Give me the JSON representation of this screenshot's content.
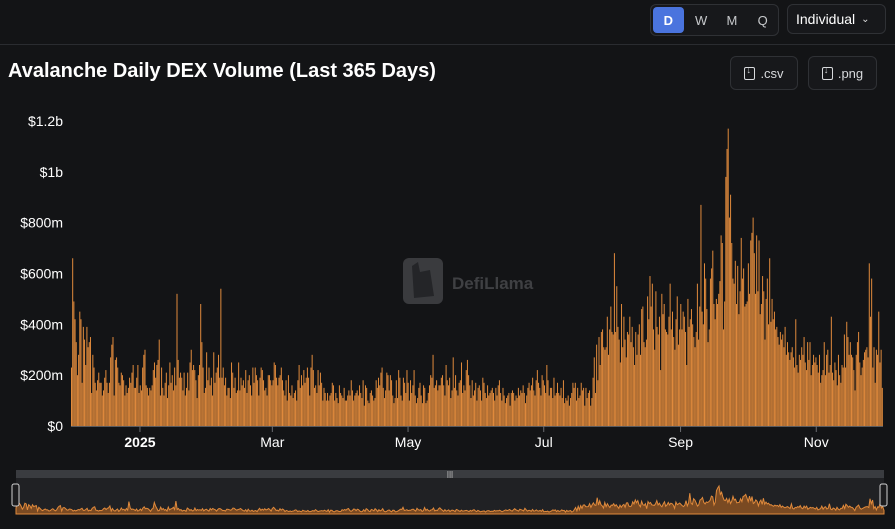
{
  "controls": {
    "periods": [
      "D",
      "W",
      "M",
      "Q"
    ],
    "active_period": "D",
    "mode": "Individual"
  },
  "downloads": {
    "csv": ".csv",
    "png": ".png"
  },
  "watermark": "DefiLlama",
  "chart_data": {
    "type": "bar",
    "title": "Avalanche Daily DEX Volume (Last 365 Days)",
    "xlabel": "",
    "ylabel": "",
    "ylim": [
      0,
      1200000000
    ],
    "yticks": [
      {
        "value": 0,
        "label": "$0"
      },
      {
        "value": 200000000,
        "label": "$200m"
      },
      {
        "value": 400000000,
        "label": "$400m"
      },
      {
        "value": 600000000,
        "label": "$600m"
      },
      {
        "value": 800000000,
        "label": "$800m"
      },
      {
        "value": 1000000000,
        "label": "$1b"
      },
      {
        "value": 1200000000,
        "label": "$1.2b"
      }
    ],
    "xticks": [
      {
        "day": 62,
        "label": "2025",
        "bold": true
      },
      {
        "day": 181,
        "label": "Mar",
        "bold": false
      },
      {
        "day": 303,
        "label": "May",
        "bold": false
      },
      {
        "day": 425,
        "label": "Jul",
        "bold": false
      },
      {
        "day": 548,
        "label": "Sep",
        "bold": false
      },
      {
        "day": 670,
        "label": "Nov",
        "bold": false
      }
    ],
    "x_range_days": [
      0,
      730
    ],
    "bar_color": "#e08a3c",
    "series": [
      {
        "values": [
          230,
          660,
          490,
          420,
          330,
          200,
          280,
          450,
          420,
          170,
          390,
          340,
          240,
          390,
          310,
          330,
          350,
          130,
          280,
          230,
          170,
          140,
          180,
          210,
          170,
          170,
          120,
          140,
          190,
          220,
          170,
          130,
          170,
          270,
          320,
          350,
          120,
          260,
          270,
          230,
          170,
          160,
          210,
          200,
          180,
          120,
          160,
          130,
          150,
          190,
          170,
          210,
          240,
          150,
          150,
          190,
          240,
          130,
          160,
          140,
          230,
          280,
          300,
          160,
          150,
          120,
          150,
          140,
          160,
          220,
          250,
          190,
          240,
          260,
          340,
          120,
          230,
          150,
          120,
          170,
          210,
          110,
          160,
          250,
          170,
          200,
          140,
          230,
          160,
          520,
          260,
          190,
          210,
          190,
          140,
          210,
          120,
          150,
          210,
          140,
          250,
          300,
          220,
          240,
          220,
          180,
          110,
          200,
          240,
          480,
          330,
          230,
          130,
          150,
          290,
          180,
          230,
          160,
          190,
          120,
          290,
          170,
          210,
          230,
          280,
          190,
          540,
          190,
          230,
          160,
          190,
          120,
          150,
          150,
          110,
          250,
          210,
          150,
          190,
          130,
          140,
          250,
          140,
          190,
          160,
          180,
          150,
          220,
          130,
          180,
          200,
          160,
          120,
          230,
          170,
          230,
          200,
          180,
          120,
          190,
          230,
          220,
          180,
          140,
          150,
          120,
          200,
          200,
          180,
          160,
          180,
          250,
          240,
          190,
          160,
          190,
          200,
          230,
          180,
          140,
          120,
          180,
          100,
          200,
          130,
          120,
          160,
          110,
          130,
          140,
          100,
          180,
          240,
          150,
          200,
          160,
          220,
          170,
          190,
          230,
          190,
          120,
          230,
          280,
          220,
          150,
          160,
          130,
          220,
          160,
          210,
          170,
          100,
          150,
          130,
          100,
          130,
          100,
          120,
          130,
          170,
          160,
          100,
          130,
          110,
          90,
          160,
          130,
          120,
          110,
          150,
          100,
          100,
          120,
          140,
          120,
          180,
          140,
          100,
          120,
          130,
          140,
          120,
          160,
          130,
          110,
          180,
          80,
          160,
          150,
          100,
          90,
          130,
          140,
          120,
          100,
          110,
          180,
          150,
          190,
          160,
          210,
          230,
          150,
          110,
          140,
          210,
          200,
          140,
          200,
          180,
          120,
          90,
          110,
          180,
          110,
          220,
          190,
          120,
          100,
          190,
          170,
          130,
          220,
          170,
          100,
          180,
          130,
          160,
          220,
          120,
          90,
          110,
          150,
          170,
          120,
          90,
          160,
          150,
          90,
          100,
          130,
          160,
          200,
          190,
          280,
          150,
          160,
          180,
          140,
          160,
          160,
          190,
          200,
          160,
          120,
          240,
          180,
          160,
          190,
          110,
          140,
          270,
          150,
          200,
          140,
          120,
          170,
          180,
          250,
          130,
          160,
          140,
          220,
          260,
          200,
          160,
          110,
          180,
          120,
          140,
          170,
          100,
          150,
          160,
          140,
          100,
          190,
          170,
          130,
          110,
          160,
          120,
          130,
          140,
          150,
          130,
          100,
          150,
          120,
          160,
          180,
          130,
          100,
          150,
          120,
          90,
          110,
          120,
          130,
          80,
          130,
          140,
          130,
          100,
          120,
          110,
          150,
          120,
          140,
          130,
          160,
          130,
          90,
          120,
          150,
          170,
          140,
          160,
          190,
          140,
          120,
          180,
          220,
          170,
          150,
          120,
          200,
          180,
          160,
          130,
          240,
          180,
          120,
          150,
          150,
          110,
          190,
          120,
          130,
          170,
          130,
          120,
          150,
          110,
          180,
          90,
          110,
          100,
          120,
          80,
          110,
          130,
          170,
          150,
          170,
          100,
          150,
          110,
          120,
          170,
          140,
          150,
          80,
          150,
          110,
          130,
          140,
          80,
          110,
          190,
          270,
          130,
          320,
          180,
          350,
          240,
          370,
          380,
          310,
          300,
          310,
          430,
          280,
          380,
          470,
          370,
          360,
          680,
          370,
          550,
          390,
          340,
          250,
          480,
          310,
          430,
          340,
          270,
          370,
          360,
          430,
          330,
          390,
          310,
          240,
          370,
          280,
          360,
          400,
          280,
          460,
          470,
          330,
          310,
          340,
          510,
          420,
          590,
          470,
          560,
          380,
          300,
          530,
          390,
          360,
          430,
          220,
          520,
          440,
          480,
          380,
          370,
          360,
          430,
          560,
          380,
          450,
          350,
          300,
          420,
          510,
          320,
          380,
          480,
          380,
          450,
          430,
          370,
          240,
          500,
          390,
          420,
          460,
          400,
          350,
          310,
          370,
          560,
          340,
          470,
          870,
          450,
          400,
          640,
          580,
          460,
          330,
          380,
          580,
          620,
          690,
          480,
          420,
          500,
          480,
          520,
          570,
          750,
          720,
          380,
          490,
          980,
          1090,
          1170,
          820,
          910,
          720,
          580,
          560,
          650,
          480,
          630,
          440,
          530,
          740,
          580,
          620,
          470,
          480,
          490,
          640,
          520,
          730,
          760,
          820,
          680,
          520,
          750,
          530,
          730,
          440,
          480,
          590,
          530,
          340,
          500,
          580,
          400,
          660,
          410,
          500,
          420,
          450,
          380,
          390,
          350,
          320,
          370,
          340,
          360,
          310,
          390,
          280,
          330,
          290,
          260,
          290,
          310,
          270,
          230,
          420,
          240,
          210,
          280,
          260,
          310,
          280,
          350,
          250,
          220,
          330,
          260,
          330,
          200,
          240,
          280,
          250,
          270,
          240,
          210,
          280,
          170,
          200,
          220,
          330,
          200,
          280,
          300,
          210,
          240,
          430,
          210,
          180,
          250,
          220,
          160,
          280,
          200,
          170,
          240,
          230,
          360,
          230,
          410,
          350,
          280,
          330,
          280,
          270,
          220,
          140,
          280,
          330,
          370,
          250,
          200,
          230,
          260,
          290,
          300,
          310,
          270,
          640,
          430,
          580,
          230,
          310,
          170,
          300,
          280,
          450,
          250,
          300,
          150
        ]
      }
    ]
  }
}
